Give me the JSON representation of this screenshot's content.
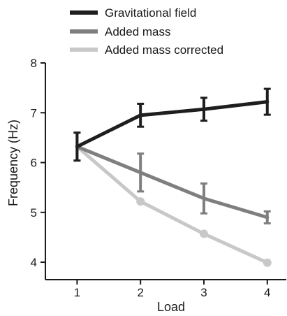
{
  "chart_data": {
    "type": "line",
    "title": "",
    "xlabel": "Load",
    "ylabel": "Frequency (Hz)",
    "categories": [
      "1",
      "2",
      "3",
      "4"
    ],
    "x": [
      1,
      2,
      3,
      4
    ],
    "xlim": [
      0.5,
      4.3
    ],
    "ylim": [
      3.65,
      8
    ],
    "yticks": [
      4,
      5,
      6,
      7,
      8
    ],
    "grid": false,
    "legend_position": "top-left",
    "series": [
      {
        "name": "Gravitational field",
        "color": "#1e1e1e",
        "values": [
          6.32,
          6.95,
          7.07,
          7.22
        ],
        "errors": [
          0.28,
          0.23,
          0.23,
          0.26
        ],
        "markers": false
      },
      {
        "name": "Added mass",
        "color": "#7f7f7f",
        "values": [
          6.32,
          5.8,
          5.28,
          4.9
        ],
        "errors": [
          0.28,
          0.38,
          0.3,
          0.12
        ],
        "markers": false
      },
      {
        "name": "Added mass corrected",
        "color": "#c8c8c8",
        "values": [
          6.32,
          5.22,
          4.57,
          3.99
        ],
        "errors": null,
        "markers": true
      }
    ]
  }
}
